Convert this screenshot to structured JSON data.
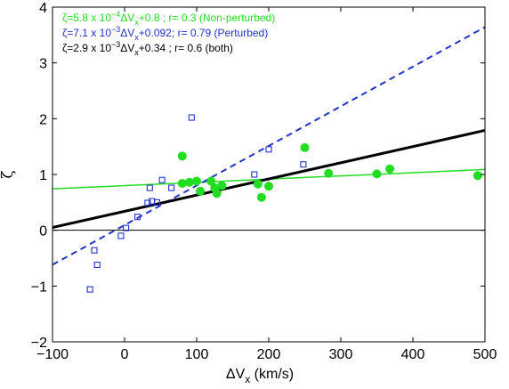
{
  "chart_data": {
    "type": "scatter",
    "xlabel": "ΔV",
    "xlabel_sub": "x",
    "xlabel_unit": " (km/s)",
    "ylabel": "ζ",
    "xlim": [
      -100,
      500
    ],
    "ylim": [
      -2,
      4
    ],
    "x_ticks": [
      -100,
      0,
      100,
      200,
      300,
      400,
      500
    ],
    "x_tick_labels": [
      "−100",
      "0",
      "100",
      "200",
      "300",
      "400",
      "500"
    ],
    "y_ticks": [
      -2,
      -1,
      0,
      1,
      2,
      3,
      4
    ],
    "y_tick_labels": [
      "−2",
      "−1",
      "0",
      "1",
      "2",
      "3",
      "4"
    ],
    "grid": false,
    "reference_line_y": 0,
    "legend": {
      "placement": "top-left",
      "entries": [
        {
          "color": "#22dd22",
          "parts": [
            "ζ=5.8 x 10",
            "−4",
            "ΔV",
            "x",
            "+0.8    ;  r= 0.3   (Non-perturbed)"
          ]
        },
        {
          "color": "#2233cc",
          "parts": [
            "ζ=7.1 x 10",
            "−3",
            "ΔV",
            "x",
            "+0.092;  r= 0.79 (Perturbed)"
          ]
        },
        {
          "color": "#000000",
          "parts": [
            "ζ=2.9 x 10",
            "−3",
            "ΔV",
            "x",
            "+0.34  ;  r= 0.6   (both)"
          ]
        }
      ]
    },
    "series": [
      {
        "marker": "circle-filled",
        "color": "#22dd22",
        "points": [
          [
            80,
            1.33
          ],
          [
            80,
            0.84
          ],
          [
            90,
            0.86
          ],
          [
            100,
            0.88
          ],
          [
            105,
            0.7
          ],
          [
            120,
            0.88
          ],
          [
            125,
            0.76
          ],
          [
            128,
            0.66
          ],
          [
            135,
            0.8
          ],
          [
            185,
            0.83
          ],
          [
            190,
            0.59
          ],
          [
            200,
            0.79
          ],
          [
            250,
            1.48
          ],
          [
            283,
            1.02
          ],
          [
            350,
            1.01
          ],
          [
            368,
            1.1
          ],
          [
            490,
            0.98
          ]
        ]
      },
      {
        "marker": "square-open",
        "color": "#2233cc",
        "points": [
          [
            -48,
            -1.06
          ],
          [
            -42,
            -0.36
          ],
          [
            -38,
            -0.62
          ],
          [
            -5,
            -0.1
          ],
          [
            2,
            0.04
          ],
          [
            18,
            0.24
          ],
          [
            32,
            0.49
          ],
          [
            35,
            0.76
          ],
          [
            38,
            0.52
          ],
          [
            45,
            0.5
          ],
          [
            52,
            0.9
          ],
          [
            65,
            0.76
          ],
          [
            93,
            2.02
          ],
          [
            180,
            1.0
          ],
          [
            200,
            1.45
          ],
          [
            248,
            1.18
          ]
        ]
      }
    ],
    "fit_lines": [
      {
        "color": "#22dd22",
        "slope": 0.00058,
        "intercept": 0.8,
        "style": "solid",
        "weight": "thin"
      },
      {
        "color": "#2233cc",
        "slope": 0.0071,
        "intercept": 0.092,
        "style": "dashed",
        "weight": "medium"
      },
      {
        "color": "#000000",
        "slope": 0.0029,
        "intercept": 0.34,
        "style": "solid",
        "weight": "thick"
      }
    ]
  }
}
